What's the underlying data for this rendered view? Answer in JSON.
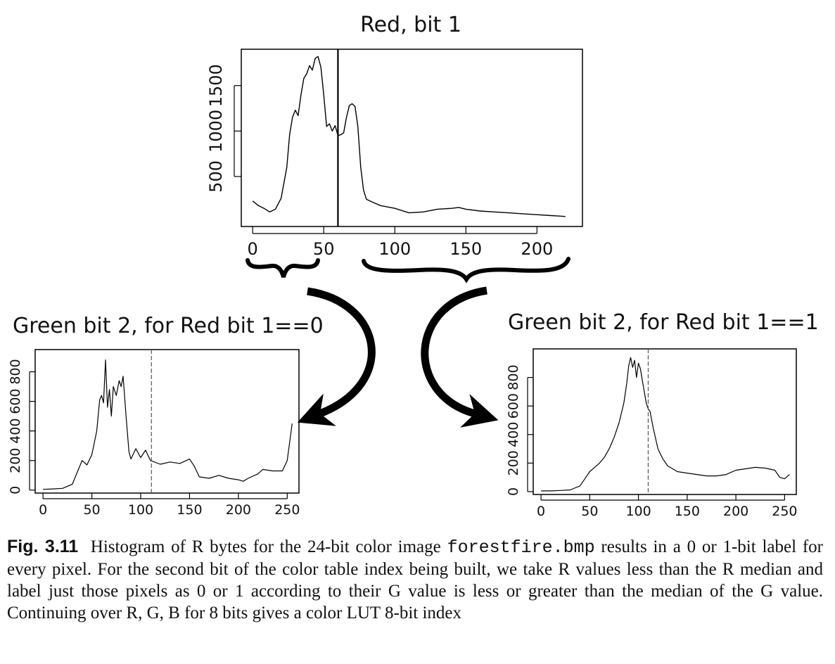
{
  "chart_data": [
    {
      "id": "red",
      "type": "line",
      "title": "Red, bit 1",
      "xlabel": "",
      "ylabel": "",
      "xlim": [
        -8,
        232
      ],
      "ylim": [
        -50,
        1900
      ],
      "xticks": [
        0,
        50,
        100,
        150,
        200
      ],
      "yticks": [
        500,
        1000,
        1500
      ],
      "median_line": {
        "x": 60,
        "style": "solid"
      },
      "grid": false,
      "x": [
        0,
        4,
        8,
        12,
        16,
        20,
        24,
        26,
        28,
        30,
        32,
        34,
        36,
        38,
        40,
        42,
        44,
        46,
        48,
        50,
        52,
        54,
        56,
        58,
        60,
        62,
        64,
        66,
        68,
        70,
        72,
        74,
        76,
        78,
        80,
        84,
        90,
        100,
        110,
        120,
        130,
        140,
        145,
        150,
        160,
        170,
        180,
        190,
        200,
        210,
        215,
        220
      ],
      "values": [
        230,
        180,
        150,
        110,
        140,
        260,
        600,
        960,
        1150,
        1230,
        1170,
        1400,
        1580,
        1630,
        1720,
        1670,
        1800,
        1820,
        1700,
        1400,
        1050,
        1080,
        1000,
        1060,
        950,
        960,
        980,
        1150,
        1280,
        1300,
        1270,
        1050,
        600,
        350,
        250,
        220,
        180,
        150,
        100,
        110,
        140,
        150,
        160,
        140,
        120,
        110,
        100,
        90,
        80,
        70,
        65,
        60
      ]
    },
    {
      "id": "green0",
      "type": "line",
      "title": "Green bit 2, for Red bit 1==0",
      "xlabel": "",
      "ylabel": "",
      "xlim": [
        -8,
        262
      ],
      "ylim": [
        -20,
        950
      ],
      "xticks": [
        0,
        50,
        100,
        150,
        200,
        250
      ],
      "yticks": [
        0,
        200,
        400,
        600,
        800
      ],
      "median_line": {
        "x": 111,
        "style": "dashed"
      },
      "grid": false,
      "x": [
        0,
        10,
        20,
        30,
        35,
        40,
        45,
        50,
        55,
        58,
        60,
        62,
        64,
        66,
        68,
        70,
        72,
        75,
        78,
        80,
        82,
        85,
        88,
        90,
        95,
        100,
        105,
        110,
        120,
        130,
        140,
        150,
        155,
        160,
        170,
        180,
        190,
        200,
        205,
        210,
        220,
        225,
        235,
        245,
        250,
        253,
        255
      ],
      "values": [
        5,
        8,
        12,
        40,
        120,
        200,
        170,
        240,
        400,
        610,
        640,
        590,
        880,
        560,
        680,
        500,
        700,
        640,
        740,
        700,
        770,
        500,
        260,
        210,
        280,
        220,
        270,
        200,
        175,
        190,
        180,
        210,
        160,
        90,
        80,
        100,
        80,
        70,
        60,
        80,
        110,
        140,
        130,
        130,
        200,
        350,
        450
      ]
    },
    {
      "id": "green1",
      "type": "line",
      "title": "Green bit 2, for Red bit 1==1",
      "xlabel": "",
      "ylabel": "",
      "xlim": [
        -8,
        262
      ],
      "ylim": [
        -20,
        1000
      ],
      "xticks": [
        0,
        50,
        100,
        150,
        200,
        250
      ],
      "yticks": [
        0,
        200,
        400,
        600,
        800
      ],
      "median_line": {
        "x": 110,
        "style": "dashed"
      },
      "grid": false,
      "x": [
        0,
        10,
        20,
        30,
        40,
        45,
        50,
        55,
        60,
        65,
        70,
        75,
        80,
        85,
        88,
        90,
        92,
        94,
        96,
        98,
        100,
        102,
        104,
        106,
        108,
        110,
        112,
        115,
        120,
        125,
        130,
        140,
        150,
        160,
        170,
        180,
        190,
        200,
        210,
        220,
        230,
        240,
        245,
        250,
        255
      ],
      "values": [
        5,
        5,
        8,
        12,
        40,
        90,
        140,
        170,
        200,
        240,
        300,
        380,
        480,
        620,
        760,
        880,
        940,
        870,
        920,
        800,
        900,
        860,
        780,
        700,
        620,
        580,
        560,
        450,
        300,
        230,
        180,
        140,
        130,
        120,
        110,
        110,
        120,
        150,
        160,
        170,
        165,
        150,
        100,
        90,
        120
      ]
    }
  ],
  "caption": {
    "label": "Fig. 3.11",
    "text_before": "Histogram of R bytes for the 24-bit color image",
    "filename": "forestfire.bmp",
    "text_after": "results in a 0 or 1-bit label for every pixel. For the second bit of the color table index being built, we take R values less than the R median and label just those pixels as 0 or 1 according to their G value is less or greater than the median of the G value. Continuing over R, G, B for 8 bits gives a color LUT 8-bit index"
  }
}
